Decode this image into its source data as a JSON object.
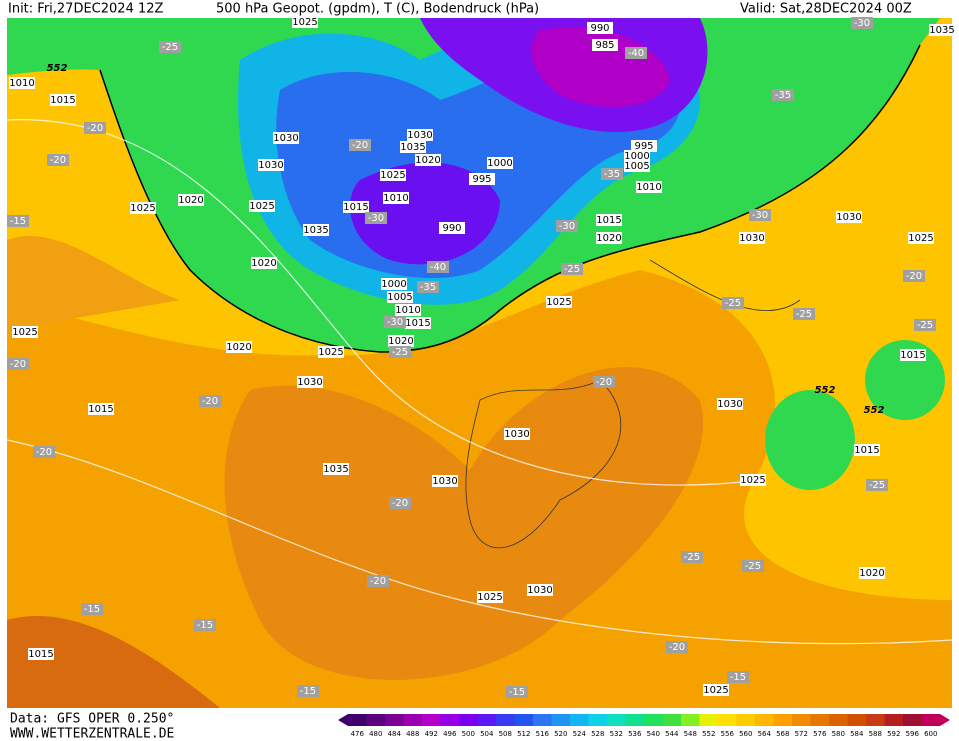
{
  "header": {
    "init": "Init: Fri,27DEC2024 12Z",
    "title": "500 hPa Geopot. (gpdm), T (C), Bodendruck (hPa)",
    "valid": "Valid: Sat,28DEC2024 00Z"
  },
  "map": {
    "isobar_labels": [
      "1025",
      "990",
      "985",
      "1010",
      "1015",
      "1030",
      "1030",
      "1030",
      "1035",
      "1020",
      "1000",
      "995",
      "1025",
      "1010",
      "1015",
      "1035",
      "990",
      "995",
      "1000",
      "1005",
      "1010",
      "1025",
      "1020",
      "1025",
      "1020",
      "1015",
      "1020",
      "1030",
      "1030",
      "1025",
      "1000",
      "1005",
      "1010",
      "1015",
      "1020",
      "1025",
      "1025",
      "1020",
      "1030",
      "1015",
      "1035",
      "1030",
      "1030",
      "1030",
      "1025",
      "1015",
      "1015",
      "1025",
      "1030",
      "1025",
      "1020",
      "1015",
      "1025",
      "1035"
    ],
    "temperature_labels": [
      "-25",
      "-20",
      "-20",
      "-15",
      "-20",
      "-20",
      "-20",
      "-20",
      "-20",
      "-15",
      "-15",
      "-15",
      "-15",
      "-20",
      "-15",
      "-25",
      "-25",
      "-20",
      "-25",
      "-25",
      "-20",
      "-25",
      "-25",
      "-30",
      "-30",
      "-25",
      "-35",
      "-40",
      "-35",
      "-35",
      "-30",
      "-40",
      "-20",
      "-30",
      "-30",
      "-25"
    ],
    "geopotential_labels": [
      "552",
      "552",
      "552"
    ]
  },
  "colorbar": {
    "ticks": [
      476,
      480,
      484,
      488,
      492,
      496,
      500,
      504,
      508,
      512,
      516,
      520,
      524,
      528,
      532,
      536,
      540,
      544,
      548,
      552,
      556,
      560,
      564,
      568,
      572,
      576,
      580,
      584,
      588,
      592,
      596,
      600
    ],
    "colors": [
      "#3f006e",
      "#5c0080",
      "#7a0096",
      "#9a00b0",
      "#b400c8",
      "#9900e6",
      "#7a00f0",
      "#5a18f5",
      "#3a3af5",
      "#2255f0",
      "#2a75f0",
      "#1e96f0",
      "#14b4f0",
      "#10d2e6",
      "#10e0c0",
      "#10e090",
      "#20e060",
      "#40e040",
      "#80f020",
      "#e8f000",
      "#ffe000",
      "#ffcc00",
      "#ffb800",
      "#ffa000",
      "#f08c00",
      "#e67800",
      "#dc6400",
      "#d05000",
      "#c83c14",
      "#b42020",
      "#a01030",
      "#c0005a"
    ]
  },
  "footer": {
    "data": "Data: GFS OPER 0.250°",
    "site": "WWW.WETTERZENTRALE.DE"
  }
}
